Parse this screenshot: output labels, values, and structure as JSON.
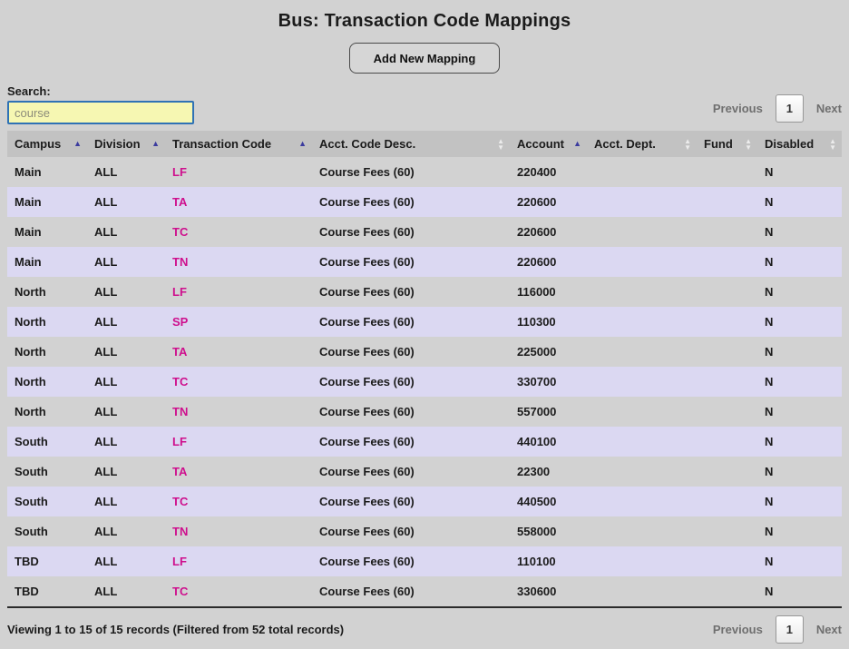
{
  "title": "Bus: Transaction Code Mappings",
  "toolbar": {
    "add_button_label": "Add New Mapping"
  },
  "search": {
    "label": "Search:",
    "value": "course"
  },
  "pagination": {
    "previous_label": "Previous",
    "current_page": "1",
    "next_label": "Next"
  },
  "table": {
    "columns": [
      {
        "key": "campus",
        "label": "Campus",
        "sort": "asc"
      },
      {
        "key": "division",
        "label": "Division",
        "sort": "asc"
      },
      {
        "key": "transaction-code",
        "label": "Transaction Code",
        "sort": "asc"
      },
      {
        "key": "acct-code-desc",
        "label": "Acct. Code Desc.",
        "sort": "none"
      },
      {
        "key": "account",
        "label": "Account",
        "sort": "asc"
      },
      {
        "key": "acct-dept",
        "label": "Acct. Dept.",
        "sort": "none"
      },
      {
        "key": "fund",
        "label": "Fund",
        "sort": "none"
      },
      {
        "key": "disabled",
        "label": "Disabled",
        "sort": "none"
      }
    ],
    "rows": [
      [
        "Main",
        "ALL",
        "LF",
        "Course Fees (60)",
        "220400",
        "",
        "",
        "N"
      ],
      [
        "Main",
        "ALL",
        "TA",
        "Course Fees (60)",
        "220600",
        "",
        "",
        "N"
      ],
      [
        "Main",
        "ALL",
        "TC",
        "Course Fees (60)",
        "220600",
        "",
        "",
        "N"
      ],
      [
        "Main",
        "ALL",
        "TN",
        "Course Fees (60)",
        "220600",
        "",
        "",
        "N"
      ],
      [
        "North",
        "ALL",
        "LF",
        "Course Fees (60)",
        "116000",
        "",
        "",
        "N"
      ],
      [
        "North",
        "ALL",
        "SP",
        "Course Fees (60)",
        "110300",
        "",
        "",
        "N"
      ],
      [
        "North",
        "ALL",
        "TA",
        "Course Fees (60)",
        "225000",
        "",
        "",
        "N"
      ],
      [
        "North",
        "ALL",
        "TC",
        "Course Fees (60)",
        "330700",
        "",
        "",
        "N"
      ],
      [
        "North",
        "ALL",
        "TN",
        "Course Fees (60)",
        "557000",
        "",
        "",
        "N"
      ],
      [
        "South",
        "ALL",
        "LF",
        "Course Fees (60)",
        "440100",
        "",
        "",
        "N"
      ],
      [
        "South",
        "ALL",
        "TA",
        "Course Fees (60)",
        "22300",
        "",
        "",
        "N"
      ],
      [
        "South",
        "ALL",
        "TC",
        "Course Fees (60)",
        "440500",
        "",
        "",
        "N"
      ],
      [
        "South",
        "ALL",
        "TN",
        "Course Fees (60)",
        "558000",
        "",
        "",
        "N"
      ],
      [
        "TBD",
        "ALL",
        "LF",
        "Course Fees (60)",
        "110100",
        "",
        "",
        "N"
      ],
      [
        "TBD",
        "ALL",
        "TC",
        "Course Fees (60)",
        "330600",
        "",
        "",
        "N"
      ]
    ]
  },
  "footer": {
    "status": "Viewing 1 to 15 of 15 records (Filtered from 52 total records)"
  },
  "icons": {
    "sort_asc": "▲",
    "sort_up": "▲",
    "sort_down": "▼"
  },
  "colors": {
    "page-bg": "#d2d2d2",
    "header-bg": "#c2c2c2",
    "stripe-bg": "#dbd8f2",
    "accent-pink": "#ce0f8d",
    "sort-active": "#3b3b9e",
    "sort-inactive": "#ececec",
    "search-bg": "#f6f7b2",
    "search-border": "#2f72b5",
    "line-dark": "#2b2b2b"
  }
}
